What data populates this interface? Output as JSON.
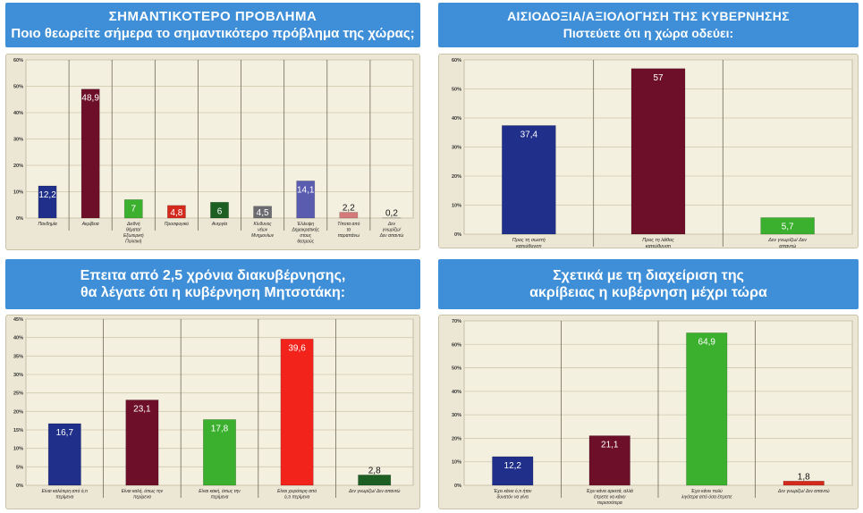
{
  "charts": [
    {
      "title": "ΣΗΜΑΝΤΙΚΟΤΕΡΟ ΠΡΟΒΛΗΜΑ",
      "subtitle": "Ποιο θεωρείτε σήμερα το σημαντικότερο πρόβλημα της χώρας;"
    },
    {
      "title": "ΑΙΣΙΟΔΟΞΙΑ/ΑΞΙΟΛΟΓΗΣΗ ΤΗΣ ΚΥΒΕΡΝΗΣΗΣ",
      "subtitle": "Πιστεύετε ότι η χώρα οδεύει:"
    },
    {
      "title": "Επειτα από 2,5 χρόνια διακυβέρνησης,",
      "subtitle": "θα λέγατε ότι η κυβέρνηση Μητσοτάκη:"
    },
    {
      "title": "Σχετικά με τη διαχείριση της",
      "subtitle": "ακρίβειας η κυβέρνηση μέχρι τώρα"
    }
  ],
  "chart_data": [
    {
      "type": "bar",
      "title": "ΣΗΜΑΝΤΙΚΟΤΕΡΟ ΠΡΟΒΛΗΜΑ",
      "subtitle": "Ποιο θεωρείτε σήμερα το σημαντικότερο πρόβλημα της χώρας;",
      "ylim": [
        0,
        60
      ],
      "yticks": [
        "0%",
        "10%",
        "20%",
        "30%",
        "40%",
        "50%",
        "60%"
      ],
      "grid": true,
      "categories": [
        "Πανδημία",
        "Ακρίβεια",
        "Διεθνή θέματα/ Εξωτερική Πολιτική",
        "Προσφυγικό",
        "Ανεργία",
        "Κίνδυνος νέων Μνημονίων",
        "Έλλειψη Δημοκρατικής στους θεσμούς",
        "Τίποτα από τα παραπάνω",
        "Δεν γνωρίζω/ Δεν απαντώ"
      ],
      "values": [
        12.2,
        48.9,
        7,
        4.8,
        6,
        4.5,
        14.1,
        2.2,
        0.2
      ],
      "labels": [
        "12,2",
        "48,9",
        "7",
        "4,8",
        "6",
        "4,5",
        "14,1",
        "2,2",
        "0,2"
      ],
      "colors": [
        "#1f2f8a",
        "#6e0f2a",
        "#3bb02e",
        "#d42a1e",
        "#1d5e22",
        "#6b6b70",
        "#5a5cb0",
        "#d47a7a",
        "#ece7d4"
      ]
    },
    {
      "type": "bar",
      "title": "ΑΙΣΙΟΔΟΞΙΑ/ΑΞΙΟΛΟΓΗΣΗ ΤΗΣ ΚΥΒΕΡΝΗΣΗΣ",
      "subtitle": "Πιστεύετε ότι η χώρα οδεύει:",
      "ylim": [
        0,
        60
      ],
      "yticks": [
        "0%",
        "10%",
        "20%",
        "30%",
        "40%",
        "50%",
        "60%"
      ],
      "grid": true,
      "categories": [
        "Προς τη σωστή κατεύθυνση",
        "Προς τη λάθος κατεύθυνση",
        "Δεν γνωρίζω/ Δεν απαντώ"
      ],
      "values": [
        37.4,
        57,
        5.7
      ],
      "labels": [
        "37,4",
        "57",
        "5,7"
      ],
      "colors": [
        "#1f2f8a",
        "#6e0f2a",
        "#3bb02e"
      ]
    },
    {
      "type": "bar",
      "title": "Επειτα από 2,5 χρόνια διακυβέρνησης,",
      "subtitle": "θα λέγατε ότι η κυβέρνηση Μητσοτάκη:",
      "ylim": [
        0,
        45
      ],
      "yticks": [
        "0%",
        "5%",
        "10%",
        "15%",
        "20%",
        "25%",
        "30%",
        "35%",
        "40%",
        "45%"
      ],
      "grid": true,
      "categories": [
        "Είναι καλύτερη από ό,τι περίμενα",
        "Είναι καλή, όπως την περίμενα",
        "Είναι κακή, όπως την περίμενα",
        "Είναι χειρότερη από ό,τι περίμενα",
        "Δεν γνωρίζω/ Δεν απαντώ"
      ],
      "values": [
        16.7,
        23.1,
        17.8,
        39.6,
        2.8
      ],
      "labels": [
        "16,7",
        "23,1",
        "17,8",
        "39,6",
        "2,8"
      ],
      "colors": [
        "#1f2f8a",
        "#6e0f2a",
        "#3bb02e",
        "#f2231a",
        "#1d5e22"
      ]
    },
    {
      "type": "bar",
      "title": "Σχετικά με τη διαχείριση της",
      "subtitle": "ακρίβειας η κυβέρνηση μέχρι τώρα",
      "ylim": [
        0,
        70
      ],
      "yticks": [
        "0%",
        "10%",
        "20%",
        "30%",
        "40%",
        "50%",
        "60%",
        "70%"
      ],
      "grid": true,
      "categories": [
        "Έχει κάνει ό,τι ήταν δυνατόν να γίνει",
        "Έχει κάνει αρκετά, αλλά έπρεπε να κάνει περισσότερα",
        "Έχει κάνει πολύ λιγότερα από όσα έπρεπε",
        "Δεν γνωρίζω/ Δεν απαντώ"
      ],
      "values": [
        12.2,
        21.1,
        64.9,
        1.8
      ],
      "labels": [
        "12,2",
        "21,1",
        "64,9",
        "1,8"
      ],
      "colors": [
        "#1f2f8a",
        "#6e0f2a",
        "#3bb02e",
        "#d42a1e"
      ]
    }
  ]
}
